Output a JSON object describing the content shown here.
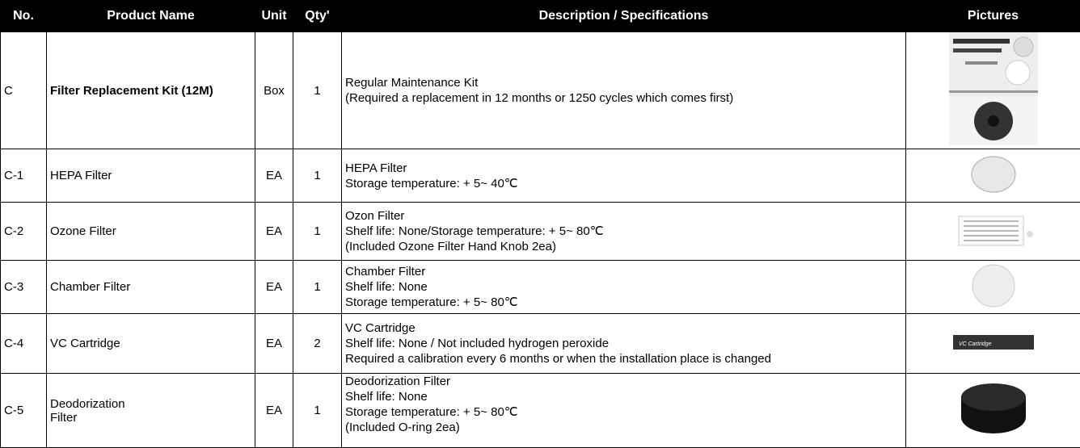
{
  "table": {
    "header": [
      "No.",
      "Product Name",
      "Unit",
      "Qty'",
      "Description / Specifications",
      "Pictures"
    ],
    "rows": [
      {
        "no": "C",
        "name": "Filter Replacement Kit (12M)",
        "unit": "Box",
        "qty": "1",
        "description": [
          "Regular Maintenance Kit",
          "(Required a replacement in 12 months or 1250 cycles which comes first)"
        ]
      },
      {
        "no": "C-1",
        "name": "HEPA Filter",
        "unit": "EA",
        "qty": "1",
        "description": [
          "HEPA Filter",
          "Storage temperature: + 5~ 40℃"
        ]
      },
      {
        "no": "C-2",
        "name": "Ozone Filter",
        "unit": "EA",
        "qty": "1",
        "description": [
          "Ozon Filter",
          "Shelf life: None/Storage temperature: + 5~ 80℃",
          "(Included Ozone Filter Hand Knob 2ea)"
        ]
      },
      {
        "no": "C-3",
        "name": "Chamber Filter",
        "unit": "EA",
        "qty": "1",
        "description": [
          "Chamber Filter",
          "Shelf life: None",
          "Storage temperature: + 5~ 80℃"
        ]
      },
      {
        "no": "C-4",
        "name": "VC Cartridge",
        "unit": "EA",
        "qty": "2",
        "description": [
          "VC Cartridge",
          "Shelf life: None / Not included hydrogen peroxide",
          "Required a calibration every 6 months or when the installation place is changed"
        ]
      },
      {
        "no": "C-5",
        "name": "Deodorization Filter",
        "unit": "EA",
        "qty": "1",
        "description": [
          "Deodorization Filter",
          "Shelf life: None",
          "Storage temperature: + 5~ 80℃",
          "(Included O-ring 2ea)"
        ]
      }
    ]
  }
}
